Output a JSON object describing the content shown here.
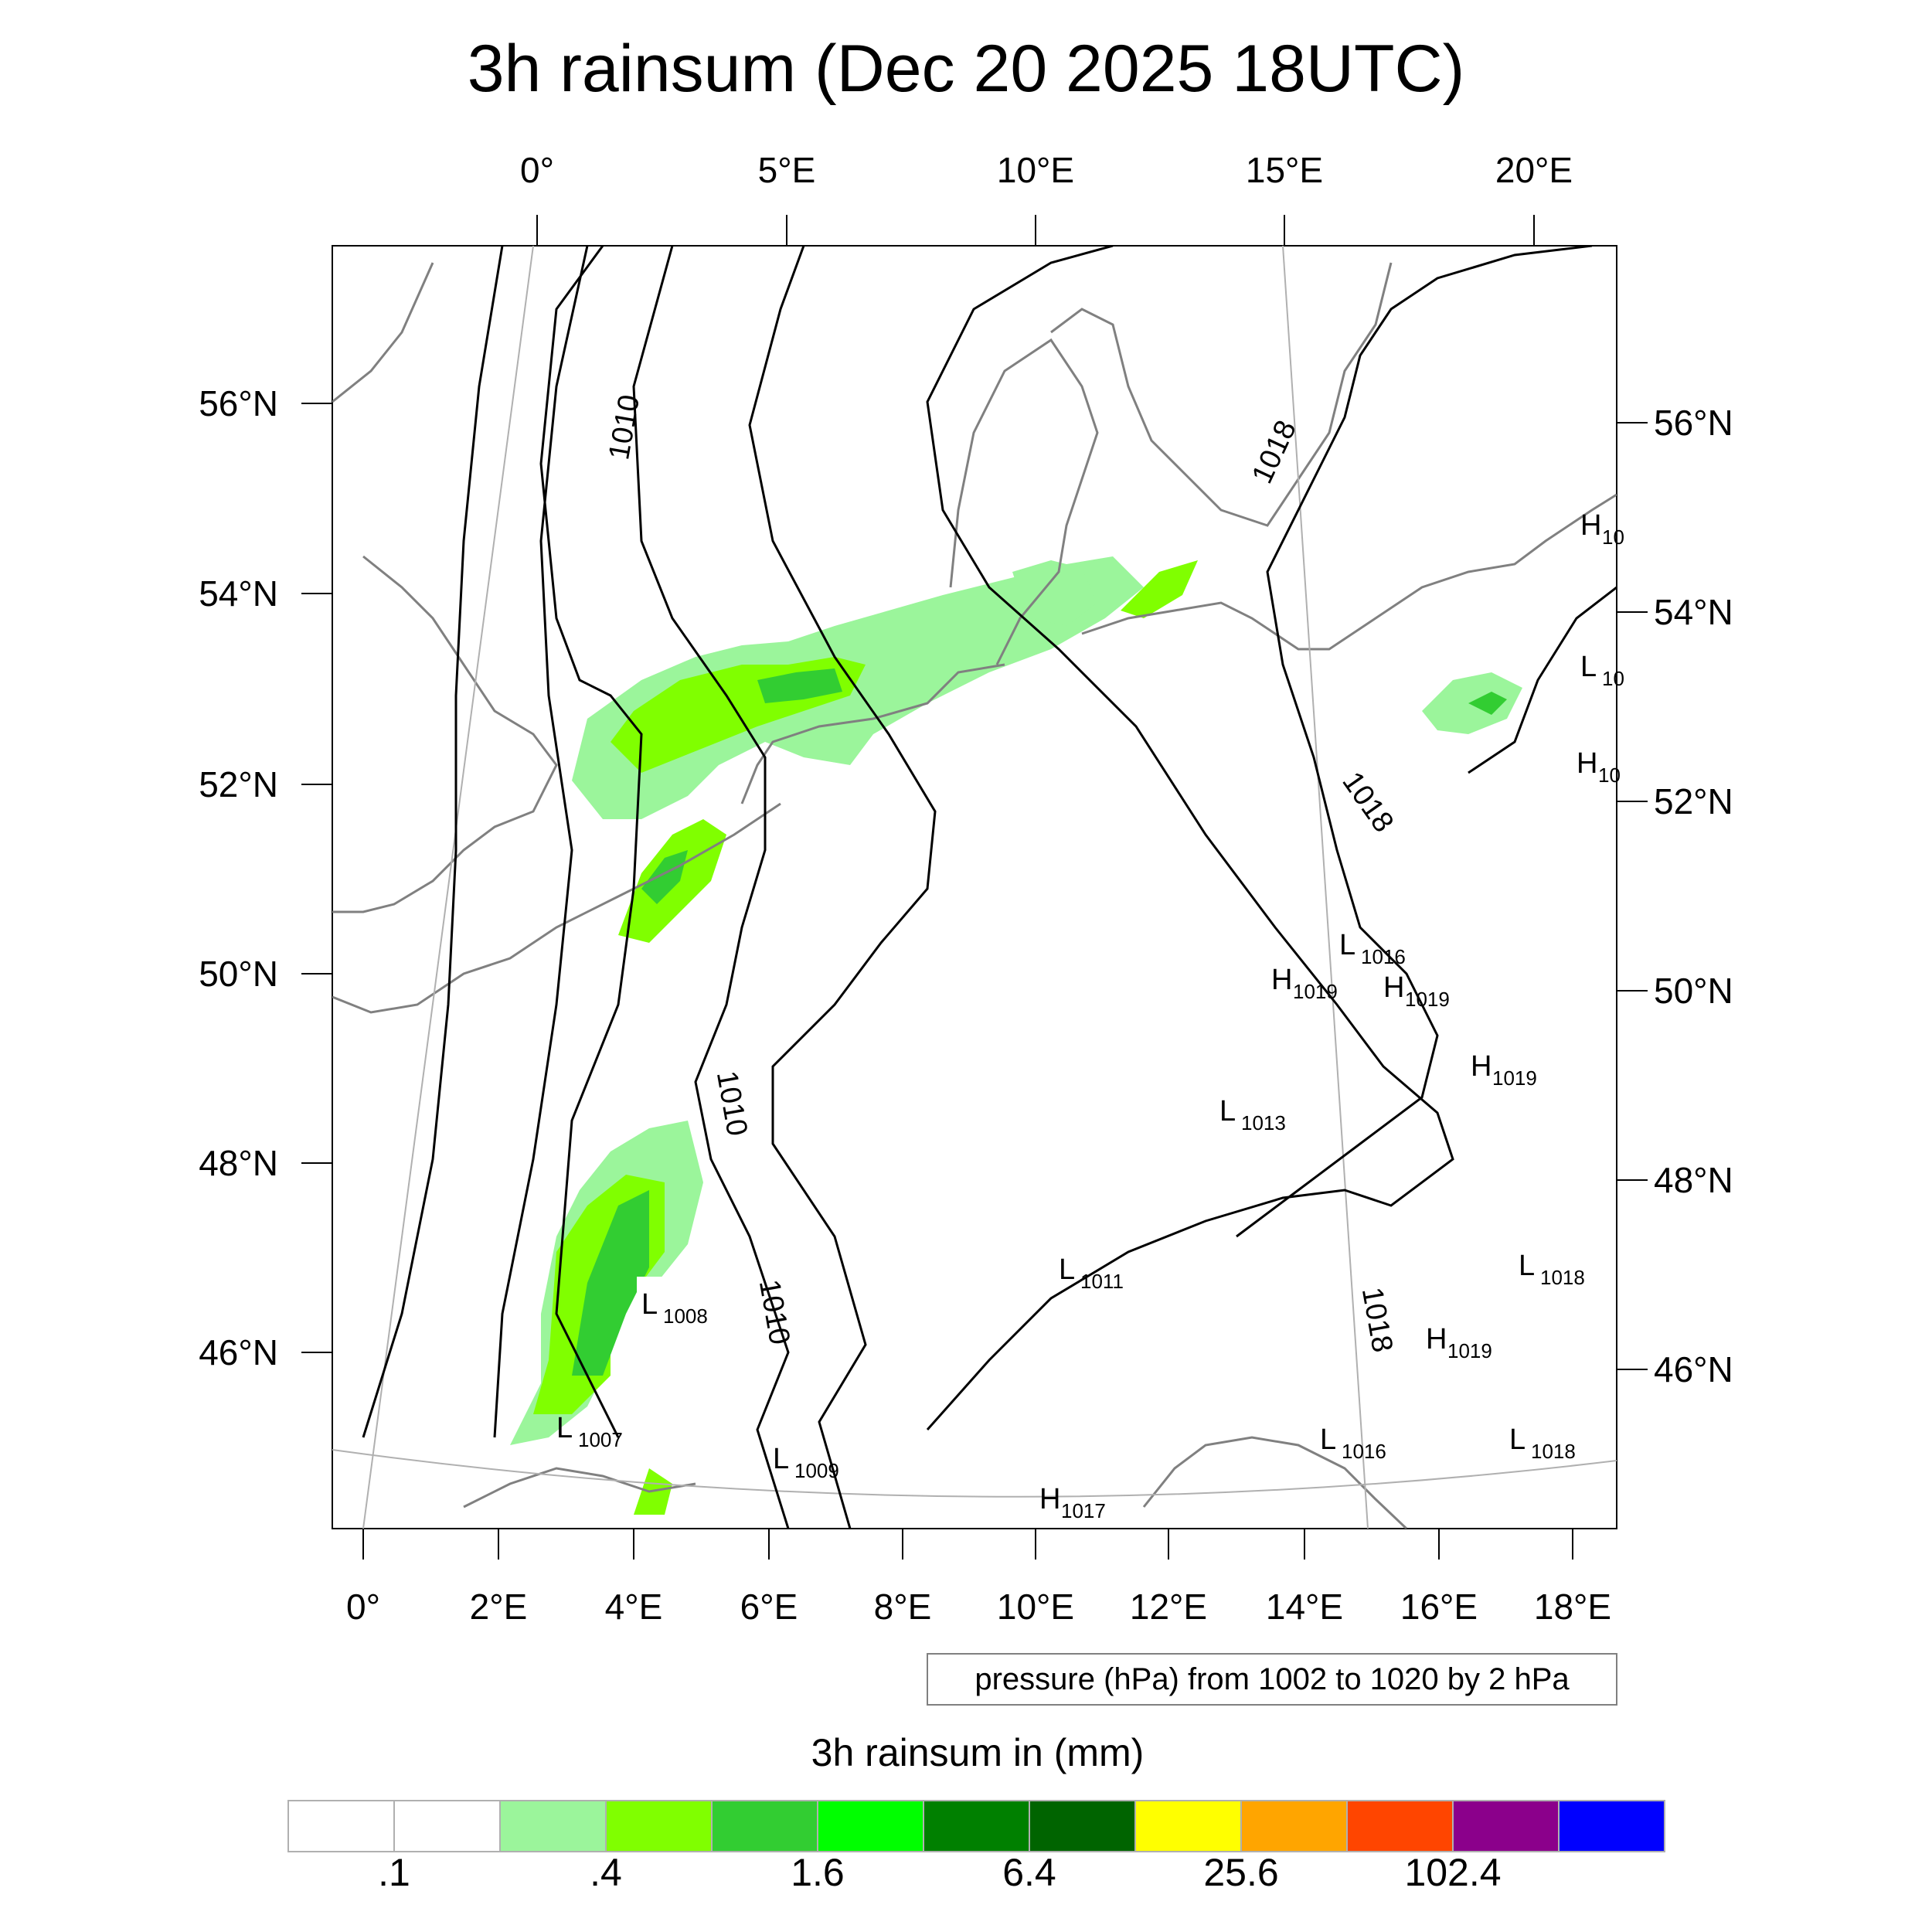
{
  "title": "3h rainsum (Dec 20 2025 18UTC)",
  "axes": {
    "top_lon_labels": [
      "0°",
      "5°E",
      "10°E",
      "15°E",
      "20°E"
    ],
    "bottom_lon_labels": [
      "0°",
      "2°E",
      "4°E",
      "6°E",
      "8°E",
      "10°E",
      "12°E",
      "14°E",
      "16°E",
      "18°E"
    ],
    "left_lat_labels": [
      "56°N",
      "54°N",
      "52°N",
      "50°N",
      "48°N",
      "46°N"
    ],
    "right_lat_labels": [
      "56°N",
      "54°N",
      "52°N",
      "50°N",
      "48°N",
      "46°N"
    ]
  },
  "contour_note": "pressure (hPa) from 1002 to 1020 by 2 hPa",
  "isobar_labels": [
    "1010",
    "1010",
    "1010",
    "1018",
    "1018",
    "1018"
  ],
  "pressure_centers": [
    {
      "type": "L",
      "value": "1008"
    },
    {
      "type": "L",
      "value": "1007"
    },
    {
      "type": "L",
      "value": "1009"
    },
    {
      "type": "L",
      "value": "1011"
    },
    {
      "type": "L",
      "value": "1013"
    },
    {
      "type": "L",
      "value": "1016"
    },
    {
      "type": "L",
      "value": "1016"
    },
    {
      "type": "L",
      "value": "1018"
    },
    {
      "type": "L",
      "value": "1018"
    },
    {
      "type": "H",
      "value": "1019"
    },
    {
      "type": "H",
      "value": "1019"
    },
    {
      "type": "H",
      "value": "1019"
    },
    {
      "type": "H",
      "value": "1019"
    },
    {
      "type": "H",
      "value": "1017"
    },
    {
      "type": "H",
      "value": "10"
    },
    {
      "type": "H",
      "value": "10"
    },
    {
      "type": "L",
      "value": "10"
    }
  ],
  "colorbar": {
    "title": "3h rainsum in (mm)",
    "colors": [
      "#ffffff",
      "#ffffff",
      "#9bf59b",
      "#80ff00",
      "#32cd32",
      "#00ff00",
      "#008000",
      "#006400",
      "#ffff00",
      "#ffa500",
      "#ff4500",
      "#8b008b",
      "#0000ff"
    ],
    "labels": [
      ".1",
      ".4",
      "1.6",
      "6.4",
      "25.6",
      "102.4"
    ]
  },
  "colors": {
    "coast": "#808080",
    "isobar": "#000000",
    "grid": "#b0b0b0"
  }
}
